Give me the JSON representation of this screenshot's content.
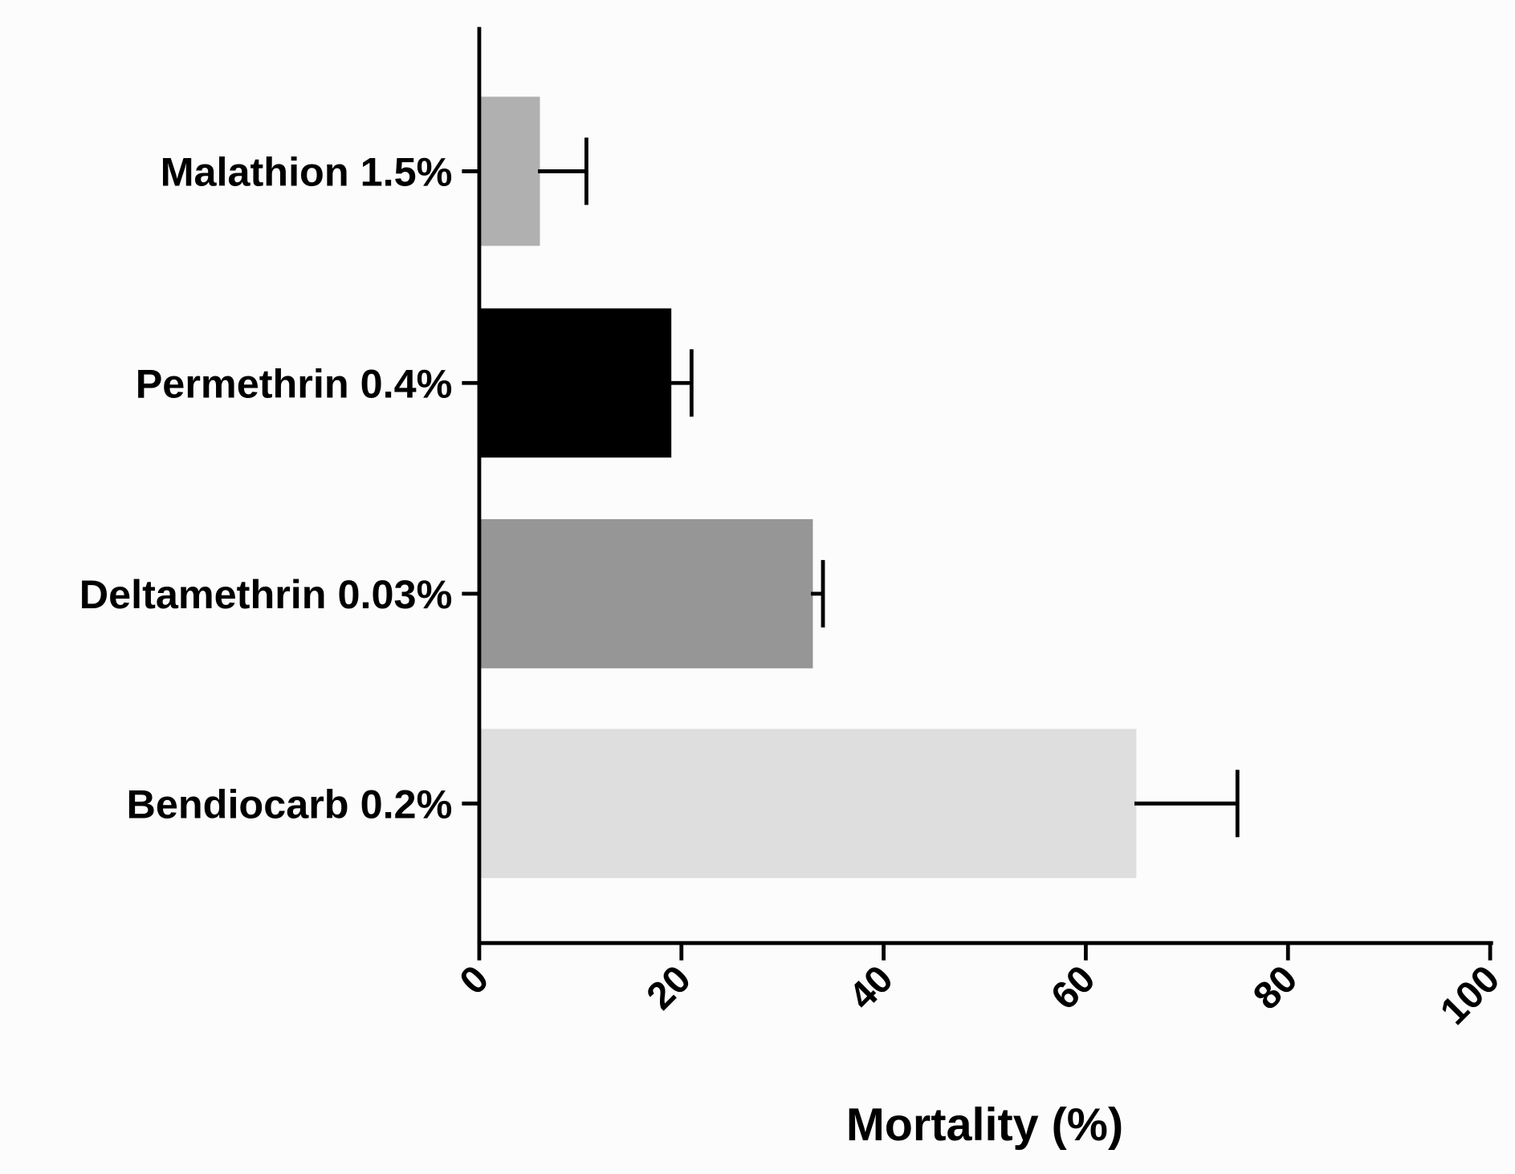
{
  "chart_data": {
    "type": "bar",
    "orientation": "horizontal",
    "title": "",
    "xlabel": "Mortality (%)",
    "ylabel": "",
    "xlim": [
      0,
      100
    ],
    "xticks": [
      "0",
      "20",
      "40",
      "60",
      "80",
      "100"
    ],
    "grid": false,
    "categories": [
      "Malathion 1.5%",
      "Permethrin 0.4%",
      "Deltamethrin 0.03%",
      "Bendiocarb 0.2%"
    ],
    "values": [
      6,
      19,
      33,
      65
    ],
    "error_upper": [
      10.6,
      21,
      34,
      75
    ],
    "colors": [
      "#b0b0b0",
      "#000000",
      "#969696",
      "#dedede"
    ]
  }
}
